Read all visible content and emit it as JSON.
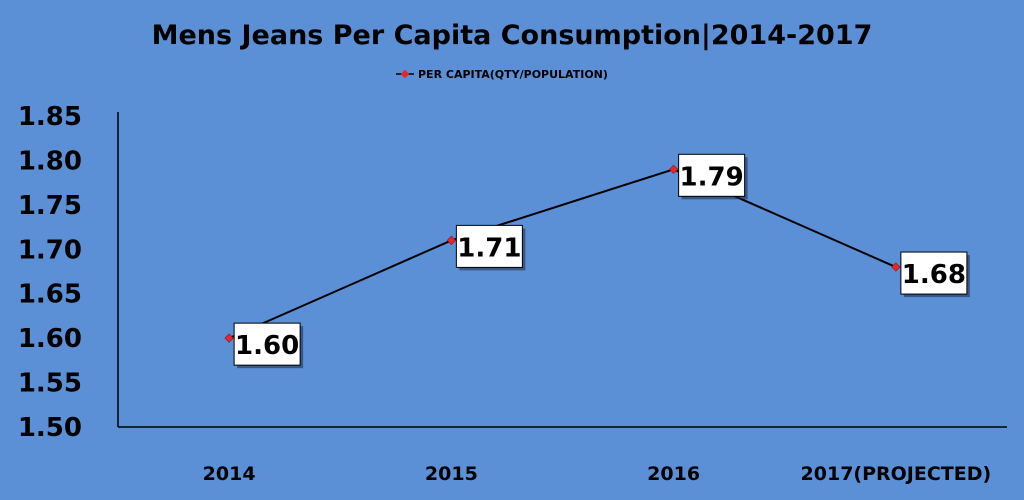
{
  "chart_data": {
    "type": "line",
    "title": "Mens Jeans Per Capita Consumption|2014-2017",
    "xlabel": "",
    "ylabel": "",
    "categories": [
      "2014",
      "2015",
      "2016",
      "2017(PROJECTED)"
    ],
    "series": [
      {
        "name": "PER CAPITA(QTY/POPULATION)",
        "values": [
          1.6,
          1.71,
          1.79,
          1.68
        ],
        "data_labels": [
          "1.60",
          "1.71",
          "1.79",
          "1.68"
        ]
      }
    ],
    "ylim": [
      1.5,
      1.85
    ],
    "yticks": [
      "1.50",
      "1.55",
      "1.60",
      "1.65",
      "1.70",
      "1.75",
      "1.80",
      "1.85"
    ],
    "grid": false,
    "legend_position": "top",
    "colors": {
      "background": "#5b8fd6",
      "line": "#000000",
      "marker": "#e8252a",
      "label_box": "#ffffff"
    }
  }
}
